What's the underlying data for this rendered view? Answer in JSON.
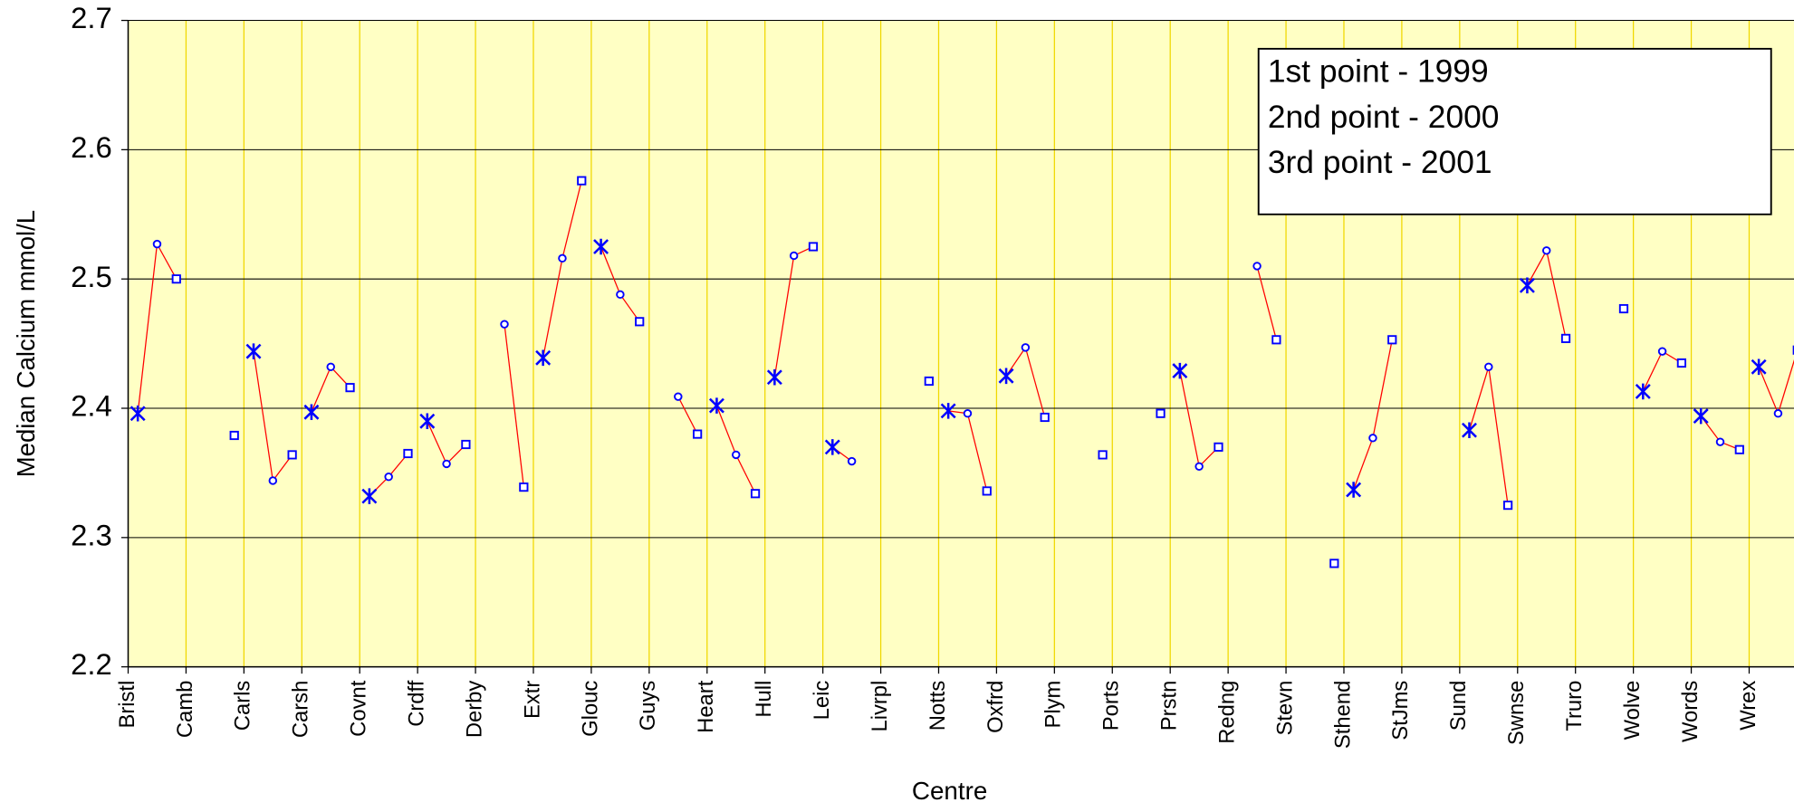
{
  "chart_data": {
    "type": "line",
    "y_label": "Median Calcium mmol/L",
    "x_label": "Centre",
    "categories": [
      "Bristl",
      "Camb",
      "Carls",
      "Carsh",
      "Covnt",
      "Crdff",
      "Derby",
      "Extr",
      "Glouc",
      "Guys",
      "Heart",
      "Hull",
      "Leic",
      "Livrpl",
      "Notts",
      "Oxfrd",
      "Plym",
      "Ports",
      "Prstn",
      "Redng",
      "Stevn",
      "Sthend",
      "StJms",
      "Sund",
      "Swnse",
      "Truro",
      "Wolve",
      "Words",
      "Wrex"
    ],
    "series": [
      {
        "name": "1st point - 1999",
        "color": "#0000ff",
        "marker": "star",
        "values": [
          2.396,
          null,
          2.444,
          2.397,
          2.332,
          2.39,
          null,
          2.439,
          2.525,
          null,
          2.402,
          2.424,
          2.37,
          null,
          2.398,
          2.425,
          null,
          null,
          2.429,
          null,
          null,
          2.337,
          null,
          2.383,
          2.495,
          null,
          2.413,
          2.394,
          2.432
        ]
      },
      {
        "name": "2nd point - 2000",
        "color": "#0000ff",
        "marker": "circle",
        "values": [
          2.527,
          null,
          2.344,
          2.432,
          2.347,
          2.357,
          2.465,
          2.516,
          2.488,
          2.409,
          2.364,
          2.518,
          2.359,
          null,
          2.396,
          2.447,
          null,
          null,
          2.355,
          2.51,
          null,
          2.377,
          null,
          2.432,
          2.522,
          null,
          2.444,
          2.374,
          2.396
        ]
      },
      {
        "name": "3rd point - 2001",
        "color": "#0000ff",
        "marker": "square",
        "values": [
          2.5,
          2.379,
          2.364,
          2.416,
          2.365,
          2.372,
          2.339,
          2.576,
          2.467,
          2.38,
          2.334,
          2.525,
          null,
          2.421,
          2.336,
          2.393,
          2.364,
          2.396,
          2.37,
          2.453,
          2.28,
          2.453,
          null,
          2.325,
          2.454,
          2.477,
          2.435,
          2.368,
          2.445
        ]
      }
    ],
    "line_color": "#ff0000",
    "ylim": [
      2.2,
      2.7
    ],
    "yticks": [
      2.2,
      2.3,
      2.4,
      2.5,
      2.6,
      2.7
    ],
    "grid": true
  }
}
